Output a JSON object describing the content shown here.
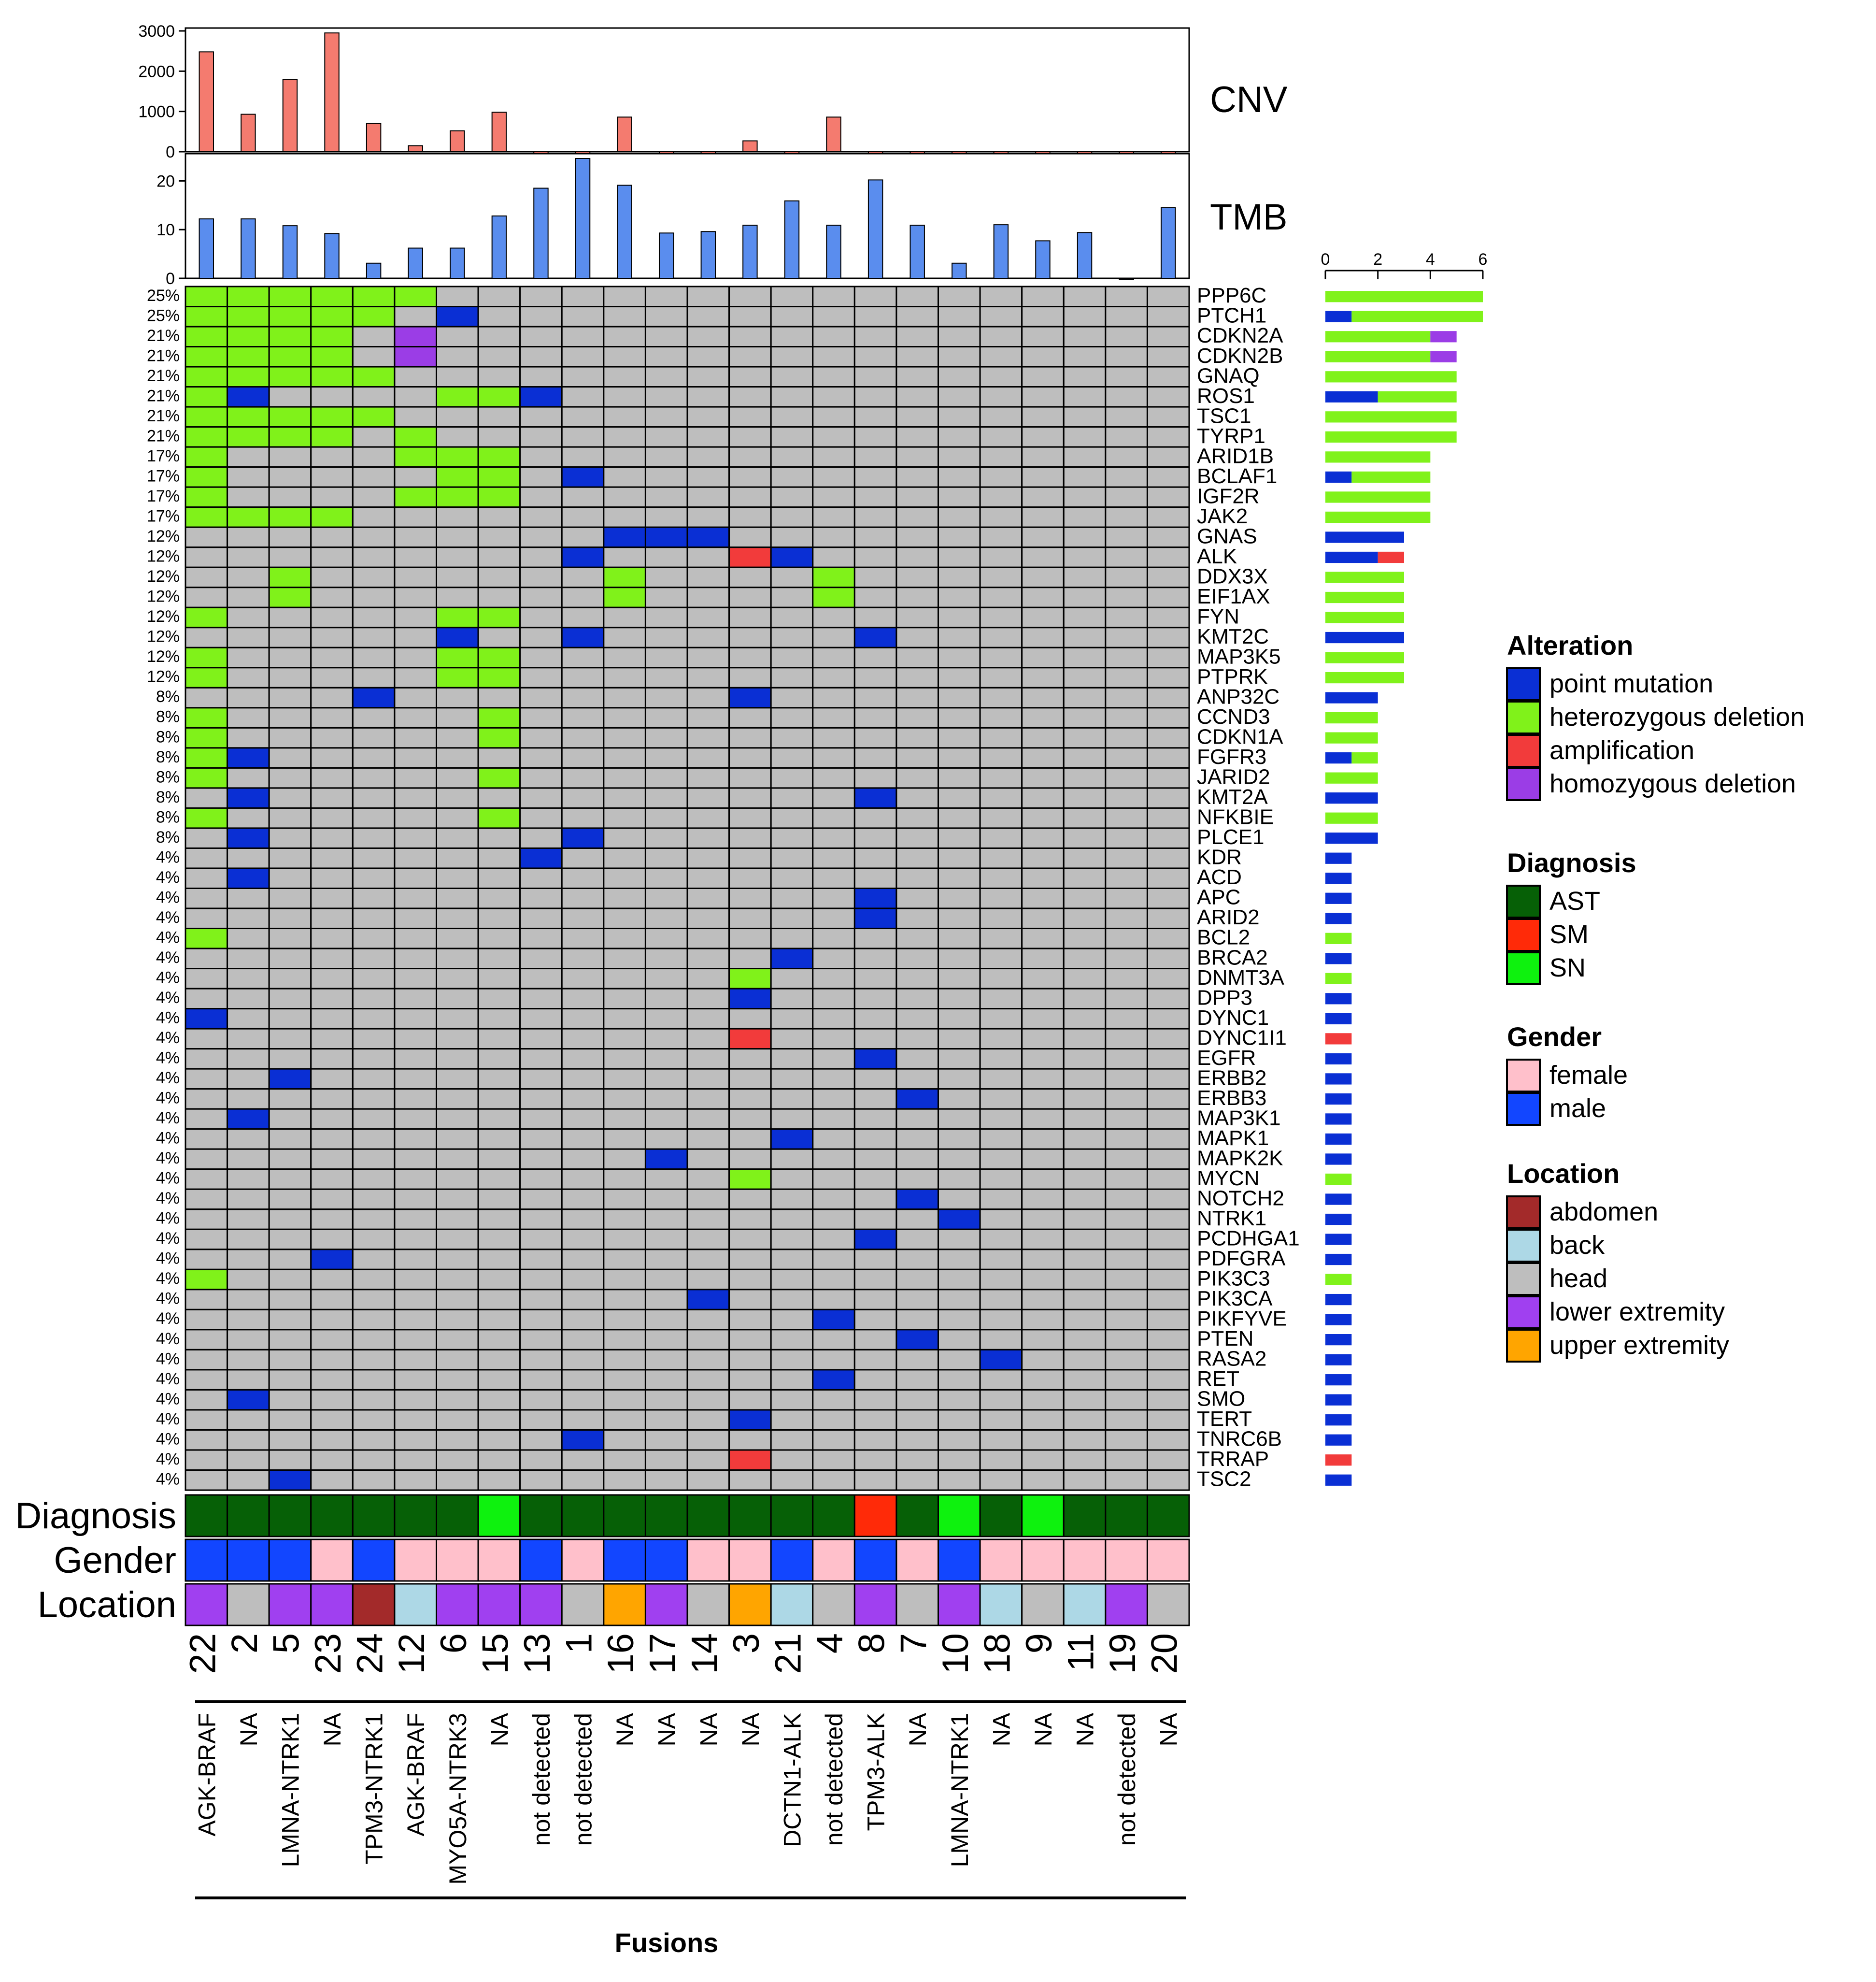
{
  "chart_data": {
    "type": "heatmap",
    "title": "",
    "xlabel": "Fusions",
    "samples": [
      {
        "id": "22",
        "diagnosis": "AST",
        "gender": "male",
        "location": "lower extremity",
        "fusion": "AGK-BRAF"
      },
      {
        "id": "2",
        "diagnosis": "AST",
        "gender": "male",
        "location": "head",
        "fusion": "NA"
      },
      {
        "id": "5",
        "diagnosis": "AST",
        "gender": "male",
        "location": "lower extremity",
        "fusion": "LMNA-NTRK1"
      },
      {
        "id": "23",
        "diagnosis": "AST",
        "gender": "female",
        "location": "lower extremity",
        "fusion": "NA"
      },
      {
        "id": "24",
        "diagnosis": "AST",
        "gender": "male",
        "location": "abdomen",
        "fusion": "TPM3-NTRK1"
      },
      {
        "id": "12",
        "diagnosis": "AST",
        "gender": "female",
        "location": "back",
        "fusion": "AGK-BRAF"
      },
      {
        "id": "6",
        "diagnosis": "AST",
        "gender": "female",
        "location": "lower extremity",
        "fusion": "MYO5A-NTRK3"
      },
      {
        "id": "15",
        "diagnosis": "SN",
        "gender": "female",
        "location": "lower extremity",
        "fusion": "NA"
      },
      {
        "id": "13",
        "diagnosis": "AST",
        "gender": "male",
        "location": "lower extremity",
        "fusion": "not detected"
      },
      {
        "id": "1",
        "diagnosis": "AST",
        "gender": "female",
        "location": "head",
        "fusion": "not detected"
      },
      {
        "id": "16",
        "diagnosis": "AST",
        "gender": "male",
        "location": "upper extremity",
        "fusion": "NA"
      },
      {
        "id": "17",
        "diagnosis": "AST",
        "gender": "male",
        "location": "lower extremity",
        "fusion": "NA"
      },
      {
        "id": "14",
        "diagnosis": "AST",
        "gender": "female",
        "location": "head",
        "fusion": "NA"
      },
      {
        "id": "3",
        "diagnosis": "AST",
        "gender": "female",
        "location": "upper extremity",
        "fusion": "NA"
      },
      {
        "id": "21",
        "diagnosis": "AST",
        "gender": "male",
        "location": "back",
        "fusion": "DCTN1-ALK"
      },
      {
        "id": "4",
        "diagnosis": "AST",
        "gender": "female",
        "location": "head",
        "fusion": "not detected"
      },
      {
        "id": "8",
        "diagnosis": "SM",
        "gender": "male",
        "location": "lower extremity",
        "fusion": "TPM3-ALK"
      },
      {
        "id": "7",
        "diagnosis": "AST",
        "gender": "female",
        "location": "head",
        "fusion": "NA"
      },
      {
        "id": "10",
        "diagnosis": "SN",
        "gender": "male",
        "location": "lower extremity",
        "fusion": "LMNA-NTRK1"
      },
      {
        "id": "18",
        "diagnosis": "AST",
        "gender": "female",
        "location": "back",
        "fusion": "NA"
      },
      {
        "id": "9",
        "diagnosis": "SN",
        "gender": "female",
        "location": "head",
        "fusion": "NA"
      },
      {
        "id": "11",
        "diagnosis": "AST",
        "gender": "female",
        "location": "back",
        "fusion": "NA"
      },
      {
        "id": "19",
        "diagnosis": "AST",
        "gender": "female",
        "location": "lower extremity",
        "fusion": "not detected"
      },
      {
        "id": "20",
        "diagnosis": "AST",
        "gender": "female",
        "location": "head",
        "fusion": "NA"
      }
    ],
    "cnv": {
      "label": "CNV",
      "ylim": [
        0,
        3000
      ],
      "ticks": [
        0,
        1000,
        2000,
        3000
      ],
      "values": [
        2480,
        930,
        1800,
        2950,
        700,
        150,
        520,
        980,
        0,
        0,
        860,
        0,
        0,
        270,
        0,
        860,
        0,
        0,
        0,
        0,
        0,
        0,
        0,
        0
      ]
    },
    "tmb": {
      "label": "TMB",
      "ylim": [
        0,
        25
      ],
      "ticks": [
        0,
        10,
        20
      ],
      "values": [
        12.2,
        12.2,
        10.8,
        9.2,
        3.1,
        6.2,
        6.2,
        12.8,
        18.5,
        24.6,
        19.1,
        9.3,
        9.6,
        10.9,
        15.9,
        10.9,
        20.2,
        10.9,
        3.1,
        11.0,
        7.7,
        9.4,
        0,
        14.5
      ]
    },
    "genes": [
      {
        "name": "PPP6C",
        "pct": "25%",
        "cells": {
          "22": "het",
          "2": "het",
          "5": "het",
          "23": "het",
          "24": "het",
          "12": "het"
        }
      },
      {
        "name": "PTCH1",
        "pct": "25%",
        "cells": {
          "22": "het",
          "2": "het",
          "5": "het",
          "23": "het",
          "24": "het",
          "6": "pm"
        }
      },
      {
        "name": "CDKN2A",
        "pct": "21%",
        "cells": {
          "22": "het",
          "2": "het",
          "5": "het",
          "23": "het",
          "12": "hom"
        }
      },
      {
        "name": "CDKN2B",
        "pct": "21%",
        "cells": {
          "22": "het",
          "2": "het",
          "5": "het",
          "23": "het",
          "12": "hom"
        }
      },
      {
        "name": "GNAQ",
        "pct": "21%",
        "cells": {
          "22": "het",
          "2": "het",
          "5": "het",
          "23": "het",
          "24": "het"
        }
      },
      {
        "name": "ROS1",
        "pct": "21%",
        "cells": {
          "22": "het",
          "2": "pm",
          "6": "het",
          "15": "het",
          "13": "pm"
        }
      },
      {
        "name": "TSC1",
        "pct": "21%",
        "cells": {
          "22": "het",
          "2": "het",
          "5": "het",
          "23": "het",
          "24": "het"
        }
      },
      {
        "name": "TYRP1",
        "pct": "21%",
        "cells": {
          "22": "het",
          "2": "het",
          "5": "het",
          "23": "het",
          "12": "het"
        }
      },
      {
        "name": "ARID1B",
        "pct": "17%",
        "cells": {
          "22": "het",
          "12": "het",
          "6": "het",
          "15": "het"
        }
      },
      {
        "name": "BCLAF1",
        "pct": "17%",
        "cells": {
          "22": "het",
          "6": "het",
          "15": "het",
          "1": "pm"
        }
      },
      {
        "name": "IGF2R",
        "pct": "17%",
        "cells": {
          "22": "het",
          "12": "het",
          "6": "het",
          "15": "het"
        }
      },
      {
        "name": "JAK2",
        "pct": "17%",
        "cells": {
          "22": "het",
          "2": "het",
          "5": "het",
          "23": "het"
        }
      },
      {
        "name": "GNAS",
        "pct": "12%",
        "cells": {
          "16": "pm",
          "17": "pm",
          "14": "pm"
        }
      },
      {
        "name": "ALK",
        "pct": "12%",
        "cells": {
          "1": "pm",
          "3": "amp",
          "21": "pm"
        }
      },
      {
        "name": "DDX3X",
        "pct": "12%",
        "cells": {
          "5": "het",
          "16": "het",
          "4": "het"
        }
      },
      {
        "name": "EIF1AX",
        "pct": "12%",
        "cells": {
          "5": "het",
          "16": "het",
          "4": "het"
        }
      },
      {
        "name": "FYN",
        "pct": "12%",
        "cells": {
          "22": "het",
          "6": "het",
          "15": "het"
        }
      },
      {
        "name": "KMT2C",
        "pct": "12%",
        "cells": {
          "6": "pm",
          "1": "pm",
          "8": "pm"
        }
      },
      {
        "name": "MAP3K5",
        "pct": "12%",
        "cells": {
          "22": "het",
          "6": "het",
          "15": "het"
        }
      },
      {
        "name": "PTPRK",
        "pct": "12%",
        "cells": {
          "22": "het",
          "6": "het",
          "15": "het"
        }
      },
      {
        "name": "ANP32C",
        "pct": "8%",
        "cells": {
          "24": "pm",
          "3": "pm"
        }
      },
      {
        "name": "CCND3",
        "pct": "8%",
        "cells": {
          "22": "het",
          "15": "het"
        }
      },
      {
        "name": "CDKN1A",
        "pct": "8%",
        "cells": {
          "22": "het",
          "15": "het"
        }
      },
      {
        "name": "FGFR3",
        "pct": "8%",
        "cells": {
          "22": "het",
          "2": "pm"
        }
      },
      {
        "name": "JARID2",
        "pct": "8%",
        "cells": {
          "22": "het",
          "15": "het"
        }
      },
      {
        "name": "KMT2A",
        "pct": "8%",
        "cells": {
          "2": "pm",
          "8": "pm"
        }
      },
      {
        "name": "NFKBIE",
        "pct": "8%",
        "cells": {
          "22": "het",
          "15": "het"
        }
      },
      {
        "name": "PLCE1",
        "pct": "8%",
        "cells": {
          "2": "pm",
          "1": "pm"
        }
      },
      {
        "name": "KDR",
        "pct": "4%",
        "cells": {
          "13": "pm"
        }
      },
      {
        "name": "ACD",
        "pct": "4%",
        "cells": {
          "2": "pm"
        }
      },
      {
        "name": "APC",
        "pct": "4%",
        "cells": {
          "8": "pm"
        }
      },
      {
        "name": "ARID2",
        "pct": "4%",
        "cells": {
          "8": "pm"
        }
      },
      {
        "name": "BCL2",
        "pct": "4%",
        "cells": {
          "22": "het"
        }
      },
      {
        "name": "BRCA2",
        "pct": "4%",
        "cells": {
          "21": "pm"
        }
      },
      {
        "name": "DNMT3A",
        "pct": "4%",
        "cells": {
          "3": "het"
        }
      },
      {
        "name": "DPP3",
        "pct": "4%",
        "cells": {
          "3": "pm"
        }
      },
      {
        "name": "DYNC1",
        "pct": "4%",
        "cells": {
          "22": "pm"
        }
      },
      {
        "name": "DYNC1I1",
        "pct": "4%",
        "cells": {
          "3": "amp"
        }
      },
      {
        "name": "EGFR",
        "pct": "4%",
        "cells": {
          "8": "pm"
        }
      },
      {
        "name": "ERBB2",
        "pct": "4%",
        "cells": {
          "5": "pm"
        }
      },
      {
        "name": "ERBB3",
        "pct": "4%",
        "cells": {
          "7": "pm"
        }
      },
      {
        "name": "MAP3K1",
        "pct": "4%",
        "cells": {
          "2": "pm"
        }
      },
      {
        "name": "MAPK1",
        "pct": "4%",
        "cells": {
          "21": "pm"
        }
      },
      {
        "name": "MAPK2K",
        "pct": "4%",
        "cells": {
          "17": "pm"
        }
      },
      {
        "name": "MYCN",
        "pct": "4%",
        "cells": {
          "3": "het"
        }
      },
      {
        "name": "NOTCH2",
        "pct": "4%",
        "cells": {
          "7": "pm"
        }
      },
      {
        "name": "NTRK1",
        "pct": "4%",
        "cells": {
          "10": "pm"
        }
      },
      {
        "name": "PCDHGA1",
        "pct": "4%",
        "cells": {
          "8": "pm"
        }
      },
      {
        "name": "PDFGRA",
        "pct": "4%",
        "cells": {
          "23": "pm"
        }
      },
      {
        "name": "PIK3C3",
        "pct": "4%",
        "cells": {
          "22": "het"
        }
      },
      {
        "name": "PIK3CA",
        "pct": "4%",
        "cells": {
          "14": "pm"
        }
      },
      {
        "name": "PIKFYVE",
        "pct": "4%",
        "cells": {
          "4": "pm"
        }
      },
      {
        "name": "PTEN",
        "pct": "4%",
        "cells": {
          "7": "pm"
        }
      },
      {
        "name": "RASA2",
        "pct": "4%",
        "cells": {
          "18": "pm"
        }
      },
      {
        "name": "RET",
        "pct": "4%",
        "cells": {
          "4": "pm"
        }
      },
      {
        "name": "SMO",
        "pct": "4%",
        "cells": {
          "2": "pm"
        }
      },
      {
        "name": "TERT",
        "pct": "4%",
        "cells": {
          "3": "pm"
        }
      },
      {
        "name": "TNRC6B",
        "pct": "4%",
        "cells": {
          "1": "pm"
        }
      },
      {
        "name": "TRRAP",
        "pct": "4%",
        "cells": {
          "3": "amp"
        }
      },
      {
        "name": "TSC2",
        "pct": "4%",
        "cells": {
          "5": "pm"
        }
      }
    ],
    "count_axis": {
      "ticks": [
        0,
        2,
        4,
        6
      ],
      "max": 6
    },
    "track_labels": {
      "diagnosis": "Diagnosis",
      "gender": "Gender",
      "location": "Location"
    },
    "legends": [
      {
        "title": "Alteration",
        "items": [
          {
            "key": "pm",
            "label": "point mutation",
            "color": "#0a2fd4"
          },
          {
            "key": "het",
            "label": "heterozygous deletion",
            "color": "#80f21a"
          },
          {
            "key": "amp",
            "label": "amplification",
            "color": "#f23b3b"
          },
          {
            "key": "hom",
            "label": "homozygous deletion",
            "color": "#9b3de6"
          }
        ]
      },
      {
        "title": "Diagnosis",
        "items": [
          {
            "key": "AST",
            "label": "AST",
            "color": "#066006"
          },
          {
            "key": "SM",
            "label": "SM",
            "color": "#ff2a08"
          },
          {
            "key": "SN",
            "label": "SN",
            "color": "#0ef20e"
          }
        ]
      },
      {
        "title": "Gender",
        "items": [
          {
            "key": "female",
            "label": "female",
            "color": "#ffc0cb"
          },
          {
            "key": "male",
            "label": "male",
            "color": "#1246ff"
          }
        ]
      },
      {
        "title": "Location",
        "items": [
          {
            "key": "abdomen",
            "label": "abdomen",
            "color": "#a32a2a"
          },
          {
            "key": "back",
            "label": "back",
            "color": "#add8e6"
          },
          {
            "key": "head",
            "label": "head",
            "color": "#bebebe"
          },
          {
            "key": "lower extremity",
            "label": "lower extremity",
            "color": "#a040f0"
          },
          {
            "key": "upper extremity",
            "label": "upper extremity",
            "color": "#ffa500"
          }
        ]
      }
    ],
    "colors": {
      "empty": "#bebebe",
      "cnv_bar": "#f47b6f",
      "tmb_bar": "#5a8dee",
      "grid": "#000000"
    }
  }
}
